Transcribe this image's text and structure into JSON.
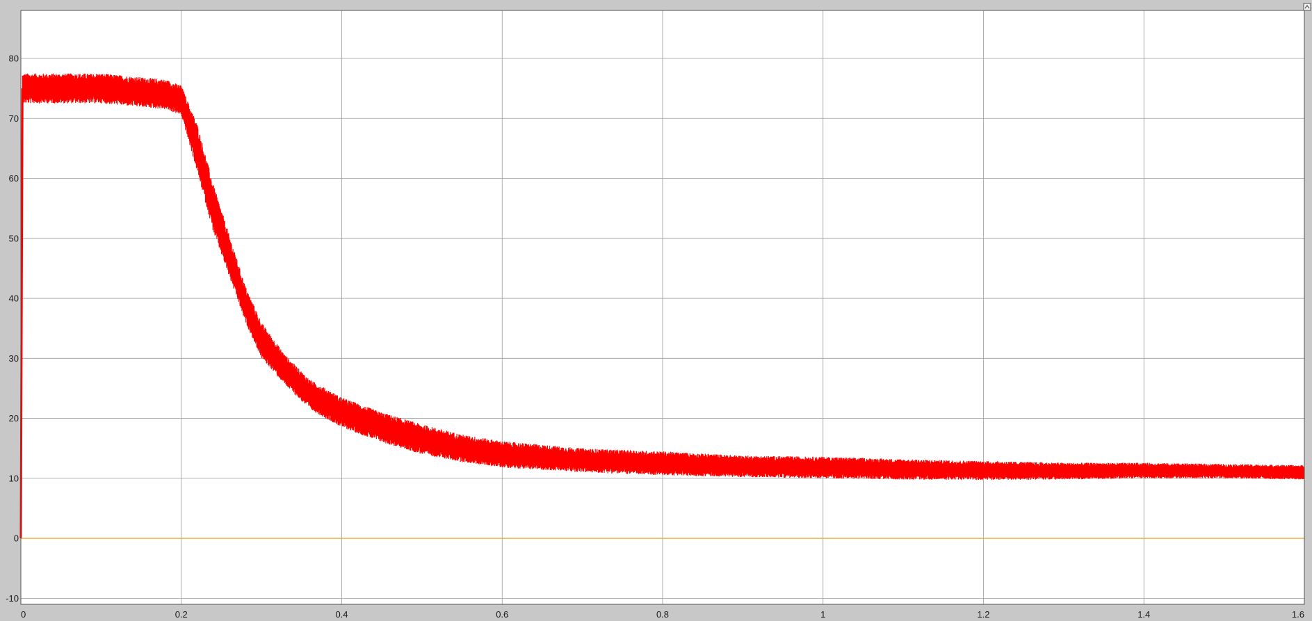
{
  "chart_data": {
    "type": "line",
    "title": "",
    "xlabel": "",
    "ylabel": "",
    "xlim": [
      0,
      1.6
    ],
    "ylim": [
      -11,
      88
    ],
    "grid": true,
    "x_ticks": [
      {
        "v": 0,
        "label": "0"
      },
      {
        "v": 0.2,
        "label": "0.2"
      },
      {
        "v": 0.4,
        "label": "0.4"
      },
      {
        "v": 0.6,
        "label": "0.6"
      },
      {
        "v": 0.8,
        "label": "0.8"
      },
      {
        "v": 1.0,
        "label": "1"
      },
      {
        "v": 1.2,
        "label": "1.2"
      },
      {
        "v": 1.4,
        "label": "1.4"
      },
      {
        "v": 1.6,
        "label": "1.6"
      }
    ],
    "y_ticks": [
      {
        "v": -10,
        "label": "-10"
      },
      {
        "v": 0,
        "label": "0"
      },
      {
        "v": 10,
        "label": "10"
      },
      {
        "v": 20,
        "label": "20"
      },
      {
        "v": 30,
        "label": "30"
      },
      {
        "v": 40,
        "label": "40"
      },
      {
        "v": 50,
        "label": "50"
      },
      {
        "v": 60,
        "label": "60"
      },
      {
        "v": 70,
        "label": "70"
      },
      {
        "v": 80,
        "label": "80"
      }
    ],
    "series": [
      {
        "color": "#ff0000",
        "style": "noisy-band",
        "x": [
          0.002,
          0.02,
          0.1,
          0.18,
          0.2,
          0.22,
          0.24,
          0.26,
          0.28,
          0.3,
          0.33,
          0.36,
          0.4,
          0.45,
          0.5,
          0.55,
          0.6,
          0.7,
          0.8,
          0.9,
          1.0,
          1.1,
          1.2,
          1.3,
          1.4,
          1.5,
          1.6
        ],
        "y": [
          75,
          75,
          75,
          74,
          73,
          65,
          55,
          47,
          39,
          33,
          28,
          24,
          21,
          18.5,
          16.5,
          15,
          14,
          13,
          12.5,
          12,
          11.8,
          11.5,
          11.3,
          11.2,
          11.3,
          11.2,
          11
        ],
        "band": [
          2.5,
          2.5,
          2.5,
          2.5,
          2.5,
          4,
          4,
          3.5,
          3,
          3,
          2.5,
          2.5,
          2.5,
          2.5,
          2.5,
          2.3,
          2.2,
          2,
          2,
          1.8,
          1.8,
          1.7,
          1.6,
          1.4,
          1.3,
          1.2,
          1.2
        ]
      },
      {
        "color": "#e5a92b",
        "style": "line",
        "x": [
          0,
          1.6
        ],
        "y": [
          0,
          0
        ]
      }
    ]
  }
}
